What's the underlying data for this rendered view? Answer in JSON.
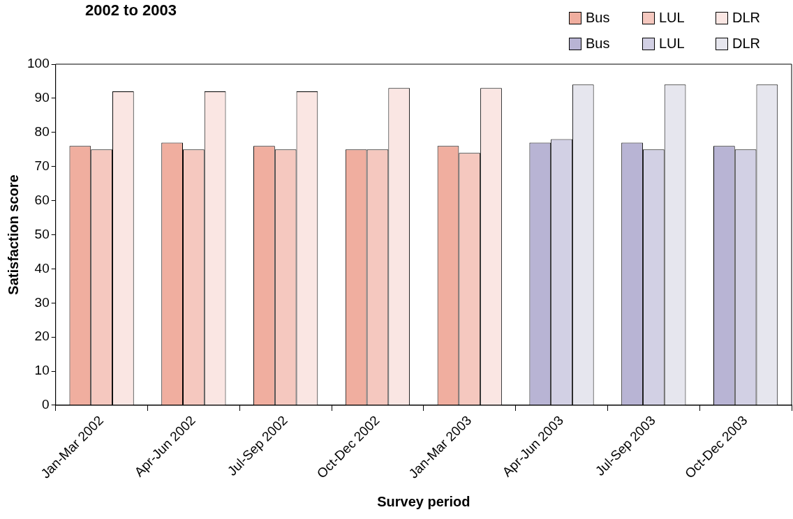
{
  "chart_data": {
    "type": "bar",
    "title": "2002 to 2003",
    "xlabel": "Survey period",
    "ylabel": "Satisfaction score",
    "categories": [
      "Jan-Mar 2002",
      "Apr-Jun 2002",
      "Jul-Sep 2002",
      "Oct-Dec 2002",
      "Jan-Mar 2003",
      "Apr-Jun 2003",
      "Jul-Sep 2003",
      "Oct-Dec 2003"
    ],
    "series": [
      {
        "name": "Bus",
        "color": "#f0ae9f",
        "values": [
          76,
          77,
          76,
          75,
          76,
          null,
          null,
          null
        ]
      },
      {
        "name": "LUL",
        "color": "#f5c8bf",
        "values": [
          75,
          75,
          75,
          75,
          74,
          null,
          null,
          null
        ]
      },
      {
        "name": "DLR",
        "color": "#fae6e3",
        "values": [
          92,
          92,
          92,
          93,
          93,
          null,
          null,
          null
        ]
      },
      {
        "name": "Bus",
        "color": "#b8b4d4",
        "values": [
          null,
          null,
          null,
          null,
          null,
          77,
          77,
          76
        ]
      },
      {
        "name": "LUL",
        "color": "#d2d0e4",
        "values": [
          null,
          null,
          null,
          null,
          null,
          78,
          75,
          75
        ]
      },
      {
        "name": "DLR",
        "color": "#e6e6ee",
        "values": [
          null,
          null,
          null,
          null,
          null,
          94,
          94,
          94
        ]
      }
    ],
    "ylim": [
      0,
      100
    ],
    "yticks": [
      0,
      10,
      20,
      30,
      40,
      50,
      60,
      70,
      80,
      90,
      100
    ],
    "grid": false,
    "legend": "top right"
  }
}
